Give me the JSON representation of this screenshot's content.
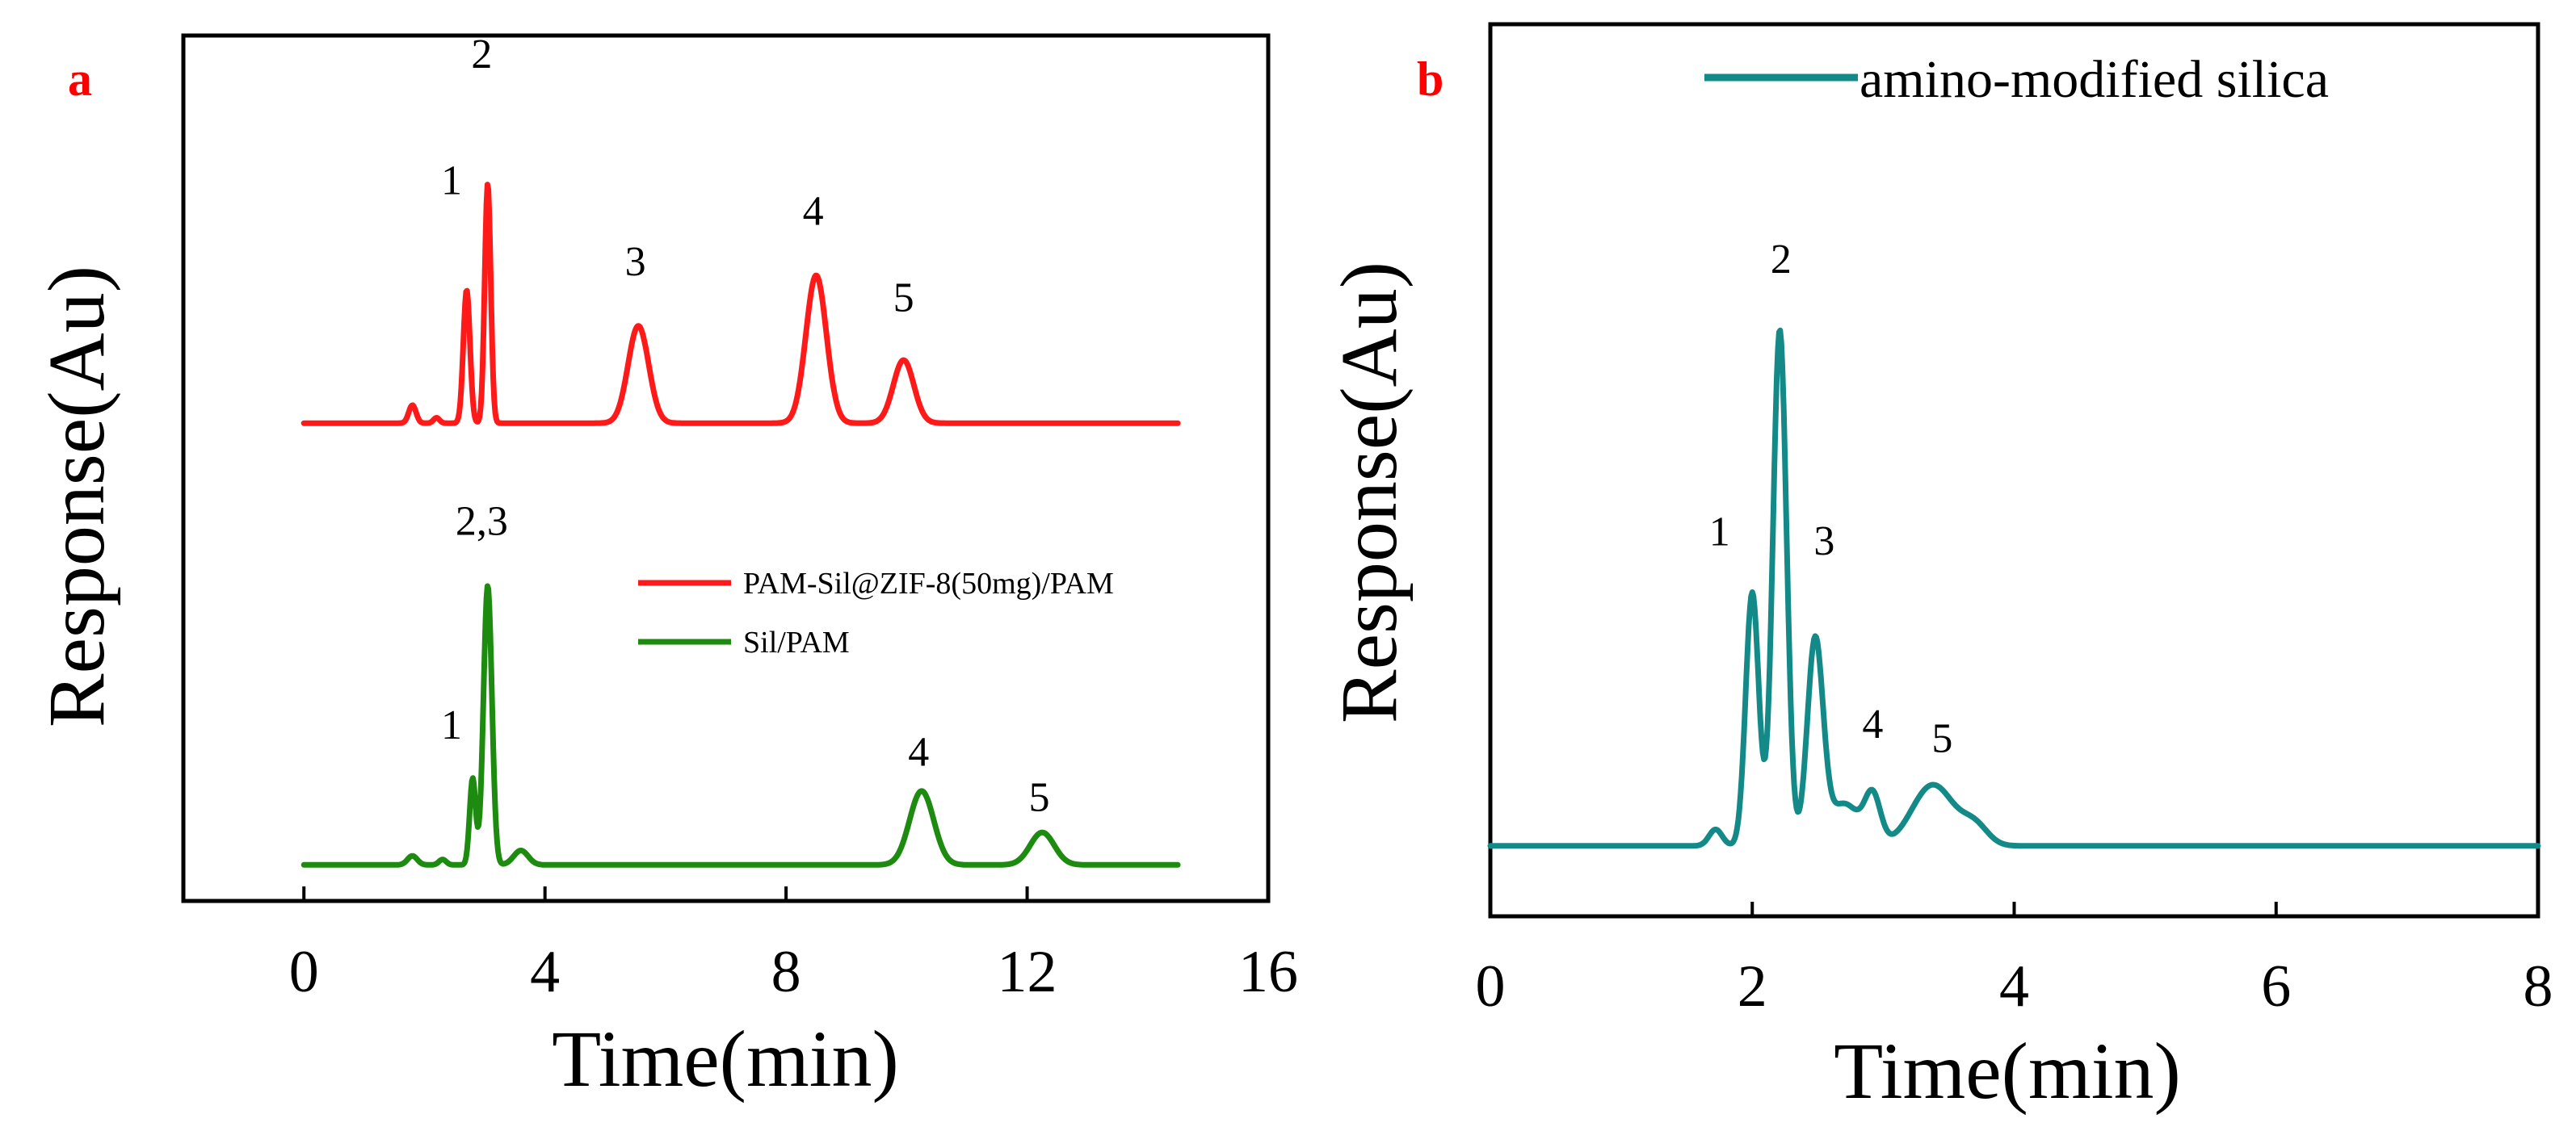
{
  "colors": {
    "red": "#ff1a1a",
    "green": "#1d8a10",
    "teal": "#138a88",
    "panel_letter": "#ff0000",
    "axis": "#000000"
  },
  "chart_data": [
    {
      "panel": "a",
      "type": "line",
      "xlabel": "Time(min)",
      "ylabel": "Response(Au)",
      "xlim": [
        -2,
        16
      ],
      "xticks": [
        0,
        4,
        8,
        12,
        16
      ],
      "xtick_labels": [
        "0",
        "4",
        "8",
        "12",
        "16"
      ],
      "ylim": [
        -0.2,
        4.6
      ],
      "legend": {
        "placement": "center-right",
        "entries": [
          "PAM-Sil@ZIF-8(50mg)/PAM",
          "Sil/PAM"
        ]
      },
      "series": [
        {
          "name": "PAM-Sil@ZIF-8(50mg)/PAM",
          "color_key": "red",
          "x_range": [
            0,
            14.5
          ],
          "baseline": 2.45,
          "peaks": [
            {
              "x": 1.8,
              "h": 0.1,
              "w": 0.06
            },
            {
              "x": 2.2,
              "h": 0.03,
              "w": 0.05
            },
            {
              "x": 2.7,
              "h": 0.74,
              "w": 0.055
            },
            {
              "x": 3.05,
              "h": 1.33,
              "w": 0.05
            },
            {
              "x": 5.55,
              "h": 0.54,
              "w": 0.17
            },
            {
              "x": 8.5,
              "h": 0.82,
              "w": 0.17
            },
            {
              "x": 9.95,
              "h": 0.35,
              "w": 0.17
            }
          ],
          "peak_labels": [
            {
              "text": "1",
              "x": 2.45,
              "y": 3.72
            },
            {
              "text": "2",
              "x": 2.95,
              "y": 4.42
            },
            {
              "text": "3",
              "x": 5.5,
              "y": 3.27
            },
            {
              "text": "4",
              "x": 8.45,
              "y": 3.55
            },
            {
              "text": "5",
              "x": 9.95,
              "y": 3.07
            }
          ]
        },
        {
          "name": "Sil/PAM",
          "color_key": "green",
          "x_range": [
            0,
            14.5
          ],
          "baseline": 0.0,
          "peaks": [
            {
              "x": 1.8,
              "h": 0.05,
              "w": 0.08
            },
            {
              "x": 2.3,
              "h": 0.03,
              "w": 0.06
            },
            {
              "x": 2.8,
              "h": 0.48,
              "w": 0.05
            },
            {
              "x": 3.05,
              "h": 1.55,
              "w": 0.07
            },
            {
              "x": 3.6,
              "h": 0.08,
              "w": 0.12
            },
            {
              "x": 10.25,
              "h": 0.41,
              "w": 0.2
            },
            {
              "x": 12.25,
              "h": 0.18,
              "w": 0.2
            }
          ],
          "peak_labels": [
            {
              "text": "2,3",
              "x": 2.95,
              "y": 1.83
            },
            {
              "text": "1",
              "x": 2.45,
              "y": 0.7
            },
            {
              "text": "4",
              "x": 10.2,
              "y": 0.55
            },
            {
              "text": "5",
              "x": 12.2,
              "y": 0.3
            }
          ]
        }
      ]
    },
    {
      "panel": "b",
      "type": "line",
      "xlabel": "Time(min)",
      "ylabel": "Response(Au)",
      "xlim": [
        0,
        8
      ],
      "xticks": [
        0,
        2,
        4,
        6,
        8
      ],
      "xtick_labels": [
        "0",
        "2",
        "4",
        "6",
        "8"
      ],
      "ylim": [
        -0.15,
        1.75
      ],
      "legend": {
        "placement": "top",
        "entries": [
          "amino-modified silica"
        ]
      },
      "series": [
        {
          "name": "amino-modified silica",
          "color_key": "teal",
          "x_range": [
            0,
            8
          ],
          "baseline": 0.0,
          "peaks": [
            {
              "x": 1.72,
              "h": 0.035,
              "w": 0.05
            },
            {
              "x": 2.0,
              "h": 0.54,
              "w": 0.05
            },
            {
              "x": 2.21,
              "h": 1.1,
              "w": 0.052
            },
            {
              "x": 2.48,
              "h": 0.43,
              "w": 0.06
            },
            {
              "x": 2.7,
              "h": 0.09,
              "w": 0.12
            },
            {
              "x": 2.92,
              "h": 0.1,
              "w": 0.06
            },
            {
              "x": 3.38,
              "h": 0.13,
              "w": 0.16
            },
            {
              "x": 3.7,
              "h": 0.04,
              "w": 0.1
            }
          ],
          "peak_labels": [
            {
              "text": "1",
              "x": 1.75,
              "y": 0.64
            },
            {
              "text": "2",
              "x": 2.22,
              "y": 1.22
            },
            {
              "text": "3",
              "x": 2.55,
              "y": 0.62
            },
            {
              "text": "4",
              "x": 2.92,
              "y": 0.23
            },
            {
              "text": "5",
              "x": 3.45,
              "y": 0.2
            }
          ]
        }
      ]
    }
  ]
}
